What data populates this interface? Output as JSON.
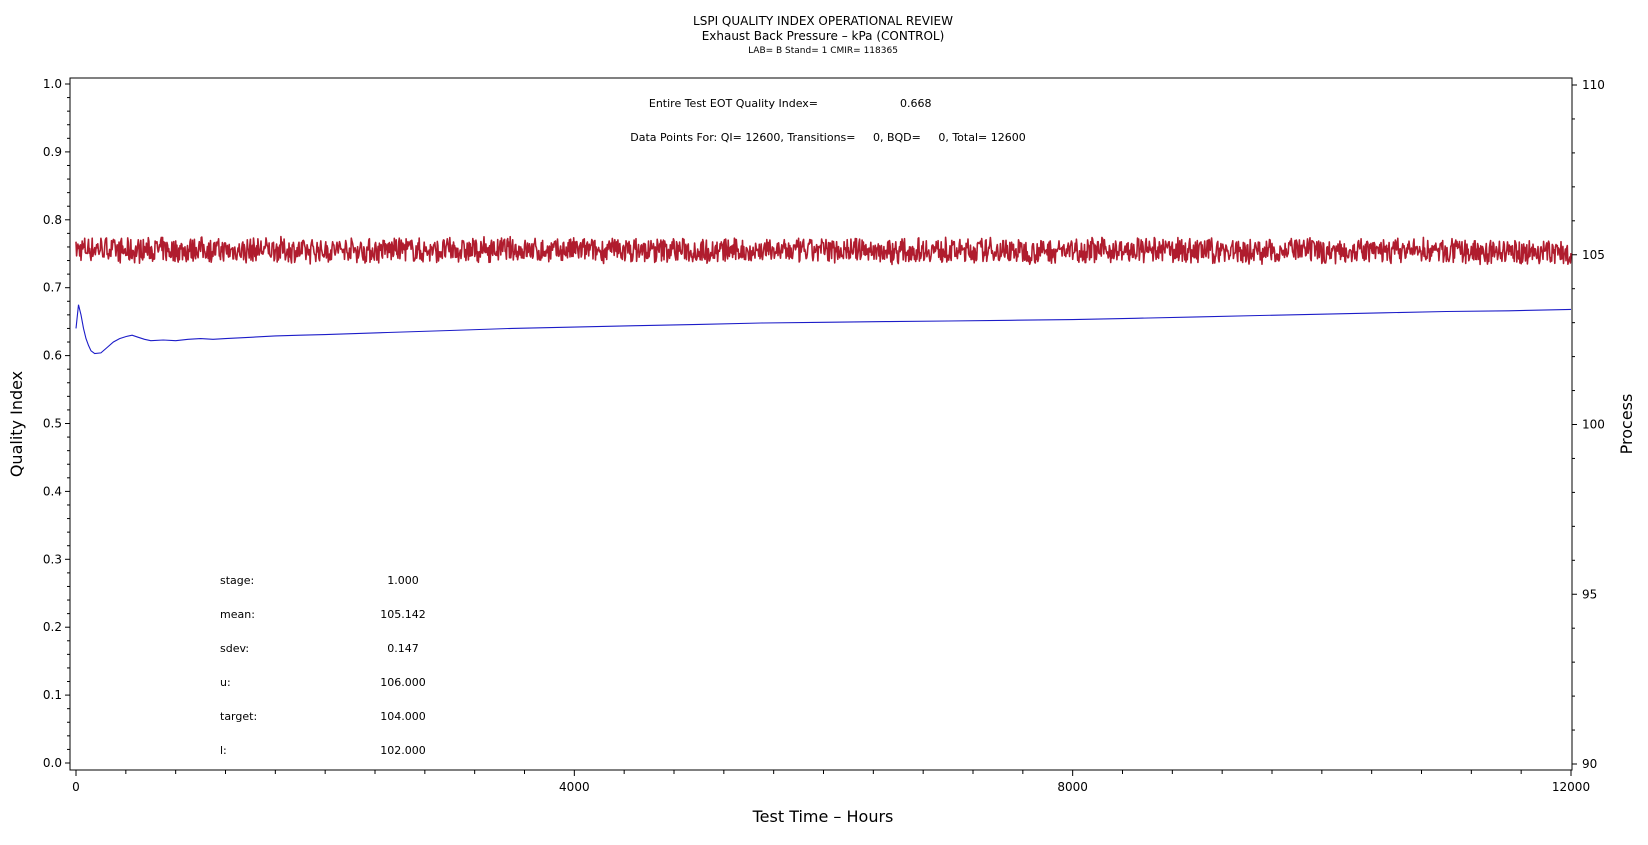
{
  "chart_data": {
    "type": "line",
    "title": "LSPI QUALITY INDEX OPERATIONAL REVIEW",
    "subtitle": "Exhaust Back Pressure – kPa (CONTROL)",
    "subsubtitle": "LAB= B Stand= 1 CMIR= 118365",
    "xlabel": "Test Time – Hours",
    "ylabel": "Quality Index",
    "y2label": "Process",
    "xlim": [
      0,
      12000
    ],
    "ylim": [
      0.0,
      1.0
    ],
    "y2lim": [
      90,
      110
    ],
    "x_ticks": [
      "0",
      "4000",
      "8000",
      "12000"
    ],
    "y_ticks": [
      "0.0",
      "0.1",
      "0.2",
      "0.3",
      "0.4",
      "0.5",
      "0.6",
      "0.7",
      "0.8",
      "0.9",
      "1.0"
    ],
    "y2_ticks": [
      "90",
      "95",
      "100",
      "105",
      "110"
    ],
    "grid": false,
    "annotations": {
      "eot_label": "Entire Test EOT Quality Index=",
      "eot_value": "0.668",
      "datapoints": "Data Points For: QI= 12600, Transitions=     0, BQD=     0, Total= 12600"
    },
    "stats": [
      {
        "label": "stage:",
        "value": "1.000"
      },
      {
        "label": "mean:",
        "value": "105.142"
      },
      {
        "label": "sdev:",
        "value": "0.147"
      },
      {
        "label": "u:",
        "value": "106.000"
      },
      {
        "label": "target:",
        "value": "104.000"
      },
      {
        "label": "l:",
        "value": "102.000"
      }
    ],
    "series": [
      {
        "axis": "right",
        "color": "#b01c2e",
        "x": [
          0,
          200,
          400,
          600,
          800,
          1000,
          1200,
          1400,
          1600,
          1800,
          2000,
          2200,
          2400,
          2600,
          2800,
          3000,
          3200,
          3400,
          3600,
          3800,
          4000,
          4200,
          4400,
          4600,
          4800,
          5000,
          5200,
          5400,
          5600,
          5800,
          6000,
          6200,
          6400,
          6600,
          6800,
          7000,
          7200,
          7400,
          7600,
          7800,
          8000,
          8200,
          8400,
          8600,
          8800,
          9000,
          9200,
          9400,
          9600,
          9800,
          10000,
          10200,
          10400,
          10600,
          10800,
          11000,
          11200,
          11400,
          11600,
          11800,
          12000
        ],
        "values": [
          105.15,
          105.2,
          105.1,
          105.15,
          105.12,
          105.18,
          105.1,
          105.14,
          105.16,
          105.1,
          105.13,
          105.15,
          105.12,
          105.17,
          105.1,
          105.14,
          105.12,
          105.16,
          105.13,
          105.1,
          105.15,
          105.12,
          105.14,
          105.1,
          105.16,
          105.12,
          105.13,
          105.11,
          105.15,
          105.1,
          105.14,
          105.16,
          105.12,
          105.1,
          105.15,
          105.13,
          105.11,
          105.14,
          105.1,
          105.12,
          105.13,
          105.15,
          105.1,
          105.12,
          105.14,
          105.11,
          105.13,
          105.1,
          105.12,
          105.14,
          105.1,
          105.12,
          105.09,
          105.11,
          105.13,
          105.08,
          105.1,
          105.07,
          105.09,
          105.08,
          105.05
        ]
      },
      {
        "axis": "left",
        "color": "#1c1cc8",
        "x": [
          0,
          20,
          40,
          60,
          80,
          100,
          120,
          150,
          200,
          250,
          300,
          350,
          400,
          450,
          500,
          550,
          600,
          700,
          800,
          900,
          1000,
          1100,
          1200,
          1400,
          1600,
          1800,
          2000,
          2500,
          3000,
          3500,
          4000,
          4500,
          5000,
          5500,
          6000,
          6500,
          7000,
          7500,
          8000,
          8500,
          9000,
          9500,
          10000,
          10500,
          11000,
          11500,
          12000
        ],
        "values": [
          0.64,
          0.675,
          0.66,
          0.64,
          0.625,
          0.615,
          0.607,
          0.603,
          0.604,
          0.612,
          0.62,
          0.625,
          0.628,
          0.63,
          0.627,
          0.624,
          0.622,
          0.623,
          0.622,
          0.624,
          0.625,
          0.624,
          0.625,
          0.627,
          0.629,
          0.63,
          0.631,
          0.634,
          0.637,
          0.64,
          0.642,
          0.644,
          0.646,
          0.648,
          0.649,
          0.65,
          0.651,
          0.652,
          0.653,
          0.655,
          0.657,
          0.659,
          0.661,
          0.663,
          0.665,
          0.666,
          0.668
        ]
      }
    ]
  }
}
